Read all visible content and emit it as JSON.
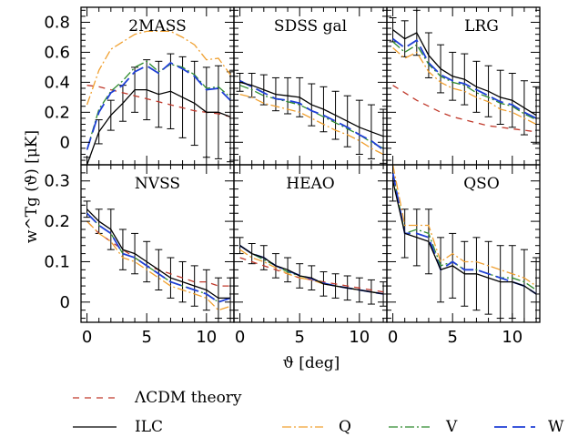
{
  "chart_data": {
    "type": "line",
    "xlabel": "ϑ [deg]",
    "ylabel": "w^Tg (ϑ)  [μK]",
    "xlim": [
      -0.5,
      12.3
    ],
    "xticks": [
      0,
      5,
      10
    ],
    "rows": [
      {
        "ylim": [
          -0.15,
          0.9
        ],
        "yticks": [
          0,
          0.2,
          0.4,
          0.6,
          0.8
        ],
        "ytick_labels": [
          "0",
          "0.2",
          "0.4",
          "0.6",
          "0.8"
        ]
      },
      {
        "ylim": [
          -0.05,
          0.34
        ],
        "yticks": [
          0,
          0.1,
          0.2,
          0.3
        ],
        "ytick_labels": [
          "0",
          "0.1",
          "0.2",
          "0.3"
        ]
      }
    ],
    "x": [
      0,
      1,
      2,
      3,
      4,
      5,
      6,
      7,
      8,
      9,
      10,
      11,
      12
    ],
    "series_styles": [
      {
        "key": "theory",
        "name": "ΛCDM theory",
        "color": "#c0392b",
        "dash": "7,6"
      },
      {
        "key": "ilc",
        "name": "ILC",
        "color": "#000000",
        "dash": ""
      },
      {
        "key": "q",
        "name": "Q",
        "color": "#f0a030",
        "dash": "10,3,2,3"
      },
      {
        "key": "v",
        "name": "V",
        "color": "#2e8b2e",
        "dash": "10,3,2,3"
      },
      {
        "key": "w",
        "name": "W",
        "color": "#1f3fd6",
        "dash": "14,6"
      }
    ],
    "panels": [
      {
        "title": "2MASS",
        "row": 0,
        "col": 0,
        "theory": [
          0.38,
          0.37,
          0.35,
          0.33,
          0.31,
          0.29,
          0.27,
          0.25,
          0.23,
          0.21,
          0.2,
          0.19,
          0.17
        ],
        "ilc": [
          -0.15,
          0.07,
          0.18,
          0.26,
          0.35,
          0.35,
          0.32,
          0.34,
          0.3,
          0.26,
          0.2,
          0.2,
          0.17
        ],
        "q": [
          0.25,
          0.48,
          0.62,
          0.67,
          0.72,
          0.74,
          0.74,
          0.74,
          0.7,
          0.65,
          0.55,
          0.56,
          0.45
        ],
        "v": [
          -0.05,
          0.22,
          0.34,
          0.41,
          0.5,
          0.54,
          0.47,
          0.52,
          0.5,
          0.45,
          0.36,
          0.37,
          0.3
        ],
        "w": [
          -0.05,
          0.2,
          0.33,
          0.38,
          0.47,
          0.51,
          0.46,
          0.53,
          0.49,
          0.44,
          0.35,
          0.36,
          0.28
        ],
        "err": [
          0.05,
          0.08,
          0.1,
          0.12,
          0.15,
          0.2,
          0.22,
          0.25,
          0.27,
          0.28,
          0.3,
          0.31,
          0.3
        ]
      },
      {
        "title": "SDSS gal",
        "row": 0,
        "col": 1,
        "theory": null,
        "ilc": [
          0.4,
          0.38,
          0.35,
          0.32,
          0.31,
          0.3,
          0.25,
          0.22,
          0.18,
          0.14,
          0.1,
          0.07,
          0.04
        ],
        "q": [
          0.32,
          0.3,
          0.26,
          0.24,
          0.22,
          0.2,
          0.16,
          0.12,
          0.08,
          0.05,
          0.01,
          -0.04,
          -0.08
        ],
        "v": [
          0.38,
          0.35,
          0.31,
          0.29,
          0.27,
          0.25,
          0.21,
          0.17,
          0.13,
          0.09,
          0.05,
          0.0,
          -0.04
        ],
        "w": [
          0.41,
          0.37,
          0.33,
          0.29,
          0.28,
          0.26,
          0.21,
          0.18,
          0.14,
          0.1,
          0.05,
          0.01,
          -0.05
        ],
        "err": [
          0.06,
          0.08,
          0.1,
          0.11,
          0.12,
          0.13,
          0.14,
          0.15,
          0.16,
          0.17,
          0.18,
          0.18,
          0.18
        ]
      },
      {
        "title": "LRG",
        "row": 0,
        "col": 2,
        "theory": [
          0.38,
          0.33,
          0.28,
          0.24,
          0.2,
          0.17,
          0.15,
          0.13,
          0.11,
          0.1,
          0.09,
          0.08,
          0.07
        ],
        "ilc": [
          0.75,
          0.69,
          0.73,
          0.58,
          0.49,
          0.44,
          0.42,
          0.37,
          0.34,
          0.3,
          0.28,
          0.23,
          0.18
        ],
        "q": [
          0.63,
          0.56,
          0.6,
          0.47,
          0.4,
          0.36,
          0.34,
          0.3,
          0.27,
          0.22,
          0.2,
          0.16,
          0.12
        ],
        "v": [
          0.67,
          0.6,
          0.65,
          0.52,
          0.44,
          0.4,
          0.38,
          0.33,
          0.3,
          0.26,
          0.24,
          0.19,
          0.15
        ],
        "w": [
          0.69,
          0.63,
          0.68,
          0.53,
          0.45,
          0.41,
          0.39,
          0.35,
          0.31,
          0.27,
          0.25,
          0.2,
          0.16
        ],
        "err": [
          0.08,
          0.12,
          0.15,
          0.15,
          0.16,
          0.16,
          0.17,
          0.17,
          0.17,
          0.18,
          0.18,
          0.18,
          0.19
        ]
      },
      {
        "title": "NVSS",
        "row": 1,
        "col": 0,
        "theory": [
          0.2,
          0.17,
          0.15,
          0.13,
          0.11,
          0.09,
          0.08,
          0.07,
          0.06,
          0.05,
          0.05,
          0.04,
          0.04
        ],
        "ilc": [
          0.23,
          0.2,
          0.18,
          0.13,
          0.12,
          0.1,
          0.08,
          0.06,
          0.05,
          0.04,
          0.03,
          0.01,
          0.01
        ],
        "q": [
          0.2,
          0.17,
          0.15,
          0.11,
          0.1,
          0.08,
          0.06,
          0.04,
          0.03,
          0.02,
          0.01,
          -0.02,
          -0.01
        ],
        "v": [
          0.22,
          0.19,
          0.17,
          0.12,
          0.11,
          0.09,
          0.07,
          0.05,
          0.04,
          0.03,
          0.02,
          0.0,
          0.01
        ],
        "w": [
          0.22,
          0.19,
          0.17,
          0.12,
          0.11,
          0.09,
          0.07,
          0.05,
          0.04,
          0.03,
          0.02,
          0.0,
          0.01
        ],
        "err": [
          0.02,
          0.03,
          0.05,
          0.05,
          0.05,
          0.05,
          0.05,
          0.05,
          0.05,
          0.05,
          0.05,
          0.05,
          0.05
        ]
      },
      {
        "title": "HEAO",
        "row": 1,
        "col": 1,
        "theory": [
          0.11,
          0.1,
          0.09,
          0.08,
          0.07,
          0.06,
          0.055,
          0.05,
          0.045,
          0.04,
          0.035,
          0.03,
          0.025
        ],
        "ilc": [
          0.14,
          0.12,
          0.11,
          0.09,
          0.08,
          0.065,
          0.06,
          0.045,
          0.04,
          0.035,
          0.03,
          0.025,
          0.02
        ],
        "q": [
          0.13,
          0.11,
          0.1,
          0.085,
          0.07,
          0.06,
          0.055,
          0.045,
          0.04,
          0.035,
          0.03,
          0.025,
          0.02
        ],
        "v": [
          0.14,
          0.12,
          0.105,
          0.09,
          0.075,
          0.065,
          0.058,
          0.047,
          0.04,
          0.035,
          0.03,
          0.025,
          0.02
        ],
        "w": [
          0.14,
          0.12,
          0.11,
          0.09,
          0.078,
          0.066,
          0.058,
          0.047,
          0.04,
          0.035,
          0.03,
          0.025,
          0.02
        ],
        "err": [
          0.02,
          0.025,
          0.03,
          0.03,
          0.03,
          0.03,
          0.03,
          0.03,
          0.03,
          0.03,
          0.03,
          0.03,
          0.03
        ]
      },
      {
        "title": "QSO",
        "row": 1,
        "col": 2,
        "theory": null,
        "ilc": [
          0.3,
          0.17,
          0.16,
          0.15,
          0.08,
          0.09,
          0.07,
          0.07,
          0.06,
          0.05,
          0.05,
          0.04,
          0.02
        ],
        "q": [
          0.34,
          0.19,
          0.19,
          0.19,
          0.1,
          0.12,
          0.1,
          0.1,
          0.09,
          0.08,
          0.07,
          0.06,
          0.04
        ],
        "v": [
          0.32,
          0.17,
          0.18,
          0.17,
          0.09,
          0.1,
          0.08,
          0.08,
          0.07,
          0.06,
          0.06,
          0.05,
          0.03
        ],
        "w": [
          0.32,
          0.17,
          0.17,
          0.16,
          0.08,
          0.1,
          0.08,
          0.08,
          0.07,
          0.06,
          0.05,
          0.04,
          0.02
        ],
        "err": [
          0.05,
          0.06,
          0.07,
          0.08,
          0.08,
          0.08,
          0.08,
          0.09,
          0.09,
          0.09,
          0.09,
          0.09,
          0.09
        ]
      }
    ]
  }
}
